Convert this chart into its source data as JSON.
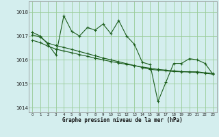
{
  "xlabel": "Graphe pression niveau de la mer (hPa)",
  "background_color": "#d4eeee",
  "grid_color": "#99cc99",
  "line_color": "#1a5c1a",
  "ylim": [
    1013.8,
    1018.45
  ],
  "xlim": [
    -0.5,
    23.5
  ],
  "yticks": [
    1014,
    1015,
    1016,
    1017,
    1018
  ],
  "xticks": [
    0,
    1,
    2,
    3,
    4,
    5,
    6,
    7,
    8,
    9,
    10,
    11,
    12,
    13,
    14,
    15,
    16,
    17,
    18,
    19,
    20,
    21,
    22,
    23
  ],
  "series1": [
    1017.15,
    1017.0,
    1016.65,
    1016.2,
    1017.85,
    1017.2,
    1017.0,
    1017.35,
    1017.25,
    1017.5,
    1017.1,
    1017.65,
    1017.0,
    1016.65,
    1015.9,
    1015.8,
    1014.25,
    1015.05,
    1015.85,
    1015.85,
    1016.05,
    1016.0,
    1015.85,
    1015.4
  ],
  "series2": [
    1017.05,
    1016.95,
    1016.7,
    1016.6,
    1016.52,
    1016.44,
    1016.35,
    1016.26,
    1016.17,
    1016.08,
    1016.0,
    1015.92,
    1015.84,
    1015.76,
    1015.68,
    1015.6,
    1015.57,
    1015.54,
    1015.51,
    1015.5,
    1015.5,
    1015.5,
    1015.46,
    1015.43
  ],
  "series3": [
    1016.82,
    1016.72,
    1016.57,
    1016.45,
    1016.37,
    1016.3,
    1016.22,
    1016.15,
    1016.07,
    1016.0,
    1015.93,
    1015.87,
    1015.81,
    1015.76,
    1015.7,
    1015.65,
    1015.6,
    1015.57,
    1015.54,
    1015.51,
    1015.49,
    1015.47,
    1015.44,
    1015.4
  ]
}
